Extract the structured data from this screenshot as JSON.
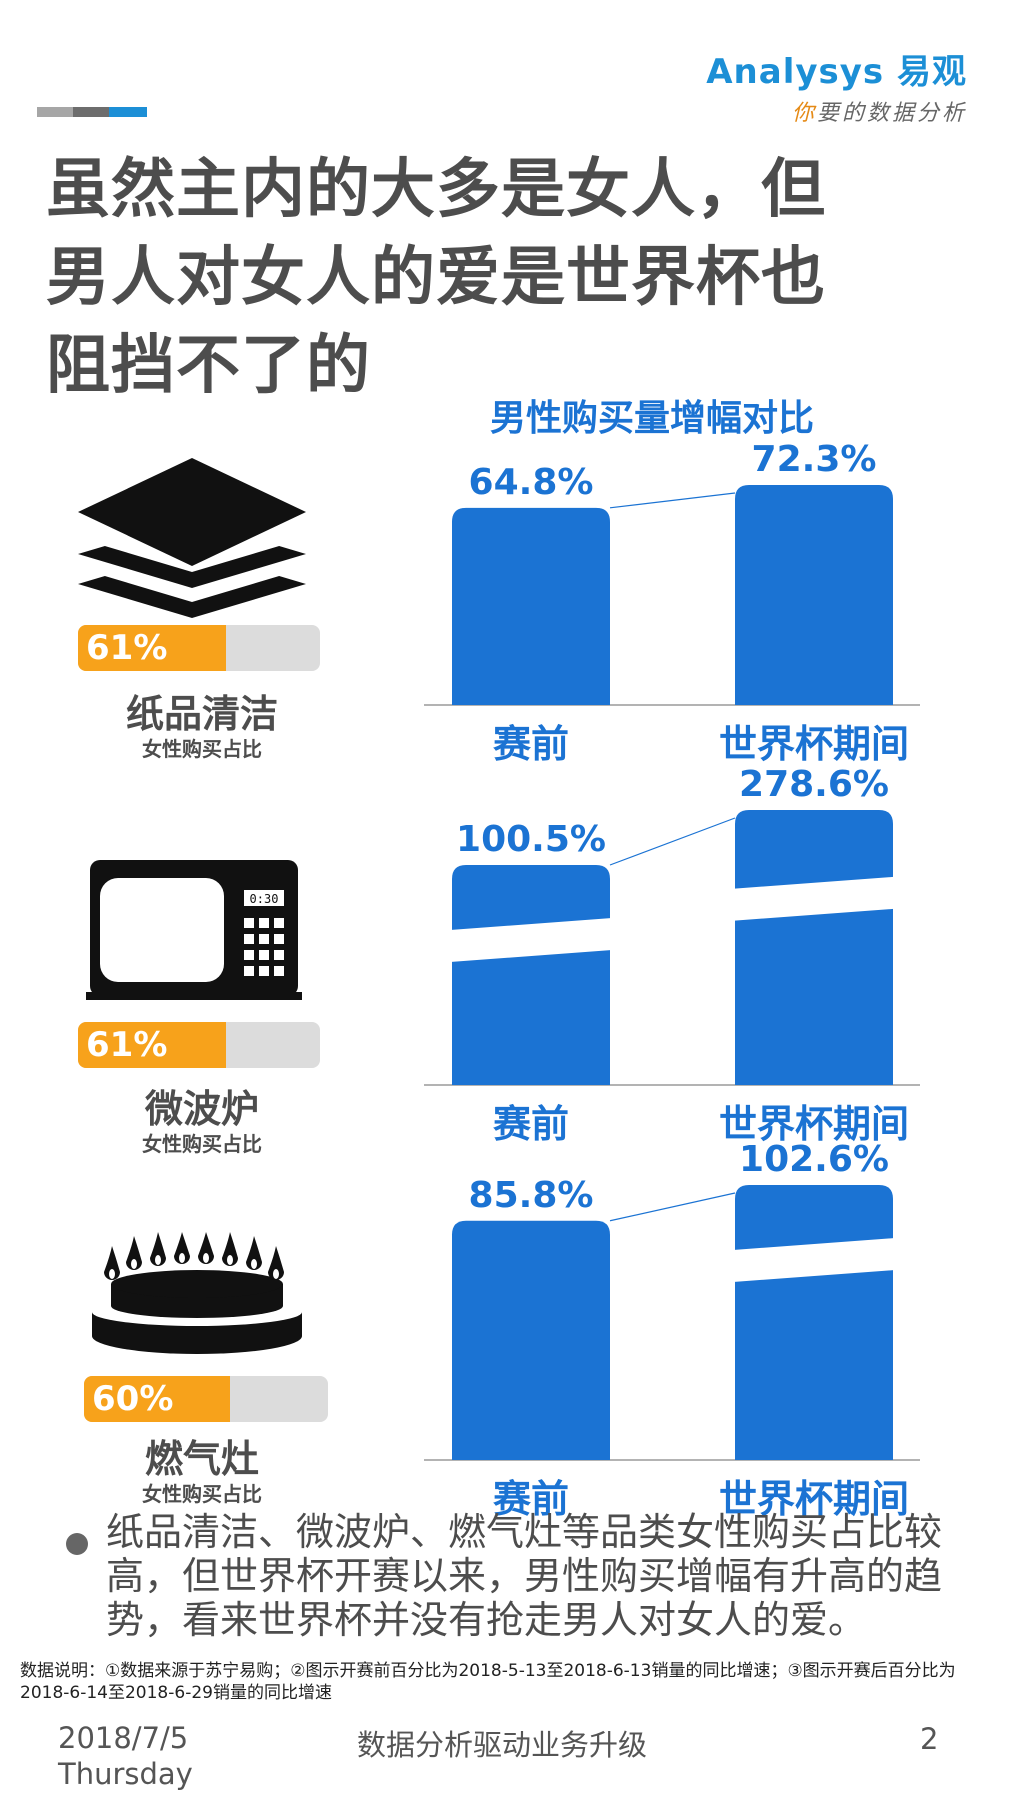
{
  "header": {
    "logo_main": "Analysys",
    "logo_cn": "易观",
    "logo_slogan_first": "你",
    "logo_slogan_rest": "要的数据分析",
    "bar_colors": [
      "#a6a6a6",
      "#6d6d6d",
      "#1c8fd6"
    ]
  },
  "title": {
    "line1": "虽然主内的大多是女人，但",
    "line2": "男人对女人的爱是世界杯也",
    "line3": "阻挡不了的"
  },
  "chart_title": "男性购买量增幅对比",
  "categories": [
    {
      "name": "纸品清洁",
      "sub": "女性购买占比",
      "female_share": 61,
      "female_share_label": "61%",
      "icon": "paper-stack-icon"
    },
    {
      "name": "微波炉",
      "sub": "女性购买占比",
      "female_share": 61,
      "female_share_label": "61%",
      "icon": "microwave-icon",
      "icon_display": "0:30"
    },
    {
      "name": "燃气灶",
      "sub": "女性购买占比",
      "female_share": 60,
      "female_share_label": "60%",
      "icon": "gas-stove-icon"
    }
  ],
  "chart_data": [
    {
      "type": "bar",
      "title": "男性购买量增幅对比",
      "categories": [
        "赛前",
        "世界杯期间"
      ],
      "values": [
        64.8,
        72.3
      ],
      "labels": [
        "64.8%",
        "72.3%"
      ],
      "unit": "%",
      "axis_break": false
    },
    {
      "type": "bar",
      "categories": [
        "赛前",
        "世界杯期间"
      ],
      "values": [
        100.5,
        278.6
      ],
      "labels": [
        "100.5%",
        "278.6%"
      ],
      "unit": "%",
      "axis_break": true
    },
    {
      "type": "bar",
      "categories": [
        "赛前",
        "世界杯期间"
      ],
      "values": [
        85.8,
        102.6
      ],
      "labels": [
        "85.8%",
        "102.6%"
      ],
      "unit": "%",
      "axis_break": "second-bar"
    }
  ],
  "colors": {
    "bar": "#1b73d3",
    "title_gray": "#4d4d4d",
    "orange": "#f7a21b",
    "track": "#dcdcdc"
  },
  "bullet": "纸品清洁、微波炉、燃气灶等品类女性购买占比较高，但世界杯开赛以来，男性购买增幅有升高的趋势，看来世界杯并没有抢走男人对女人的爱。",
  "note": "数据说明：①数据来源于苏宁易购；②图示开赛前百分比为2018-5-13至2018-6-13销量的同比增速；③图示开赛后百分比为2018-6-14至2018-6-29销量的同比增速",
  "footer": {
    "date": "2018/7/5",
    "weekday": "Thursday",
    "center": "数据分析驱动业务升级",
    "page": "2"
  }
}
